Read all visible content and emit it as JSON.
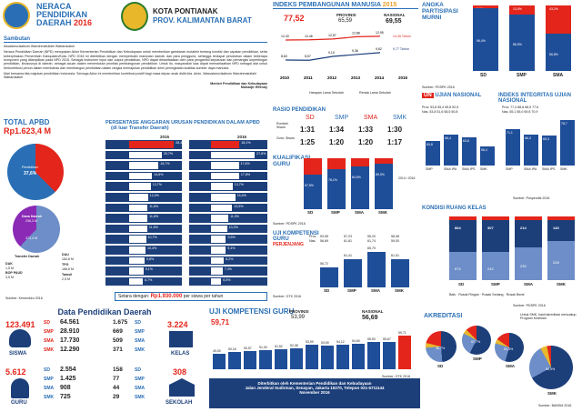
{
  "header": {
    "title1": "NERACA",
    "title2": "PENDIDIKAN",
    "title3": "DAERAH",
    "year": "2016",
    "city1": "KOTA PONTIANAK",
    "city2": "PROV. KALIMANTAN BARAT"
  },
  "sambutan": {
    "title": "Sambutan",
    "greeting": "Assalamu'alaikum Warrahmatullahi Wabarokatuh",
    "p1": "Neraca Pendidikan Daerah (NPD) merupakan Aktor Kementerian Pendidikan dan Kebudayaan untuk memberikan gambaran mutakhir tentang kondisi dan capaian pendidikan, serta keberpihakan Pemerintah Kabupaten/Kota. NPD 2016 ini diterbitkan dengan memperbaiki manusian daerah dan para pengguna, sehingga terdapat perubahan dalam beberapa komponen yang ditampilkan pada NPD 2015. Sebagai instrumen input dan output pendidikan, NPD dapat dimanfaatkan oleh para pengambil keputusan dan pemangku kepentingan pendidikan, khususnya di daerah, sebagai acuan dalam menentukan prioritas pembangunan pendidikan. Untuk itu, masyarakat luas dapat memanfaatkan NPD sebagai alat untuk berkontribusi penuh dalam membahas dan membangun pendidikan dalam rangka memajukan pendidikan demi peningkatan kualitas sumber daya manusia.",
    "p2": "Mari bersama kita majukan pendidikan Indonesia. Semoga Aktor ini memberikan kontribusi positif bagi masa depan anak didik kita. Amin. Wassalamu'alaikum Warrahmatullahi Wabarokatuh",
    "sign1": "Menteri Pendidikan dan Kebudayaan",
    "sign2": "Muhadjir Effendy"
  },
  "ipm": {
    "title": "INDEKS PEMBANGUNAN MANUSIA",
    "year": "2015",
    "val": "77,52",
    "prov_l": "PROVINSI",
    "prov_v": "65,59",
    "nas_l": "NASIONAL",
    "nas_v": "69,55",
    "top": [
      "12,43",
      "12,46",
      "12,57",
      "12,88",
      "12,95"
    ],
    "bot": [
      "8,60",
      "8,57",
      "9,10",
      "9,36",
      "9,62"
    ],
    "years": [
      "2010",
      "2011",
      "2012",
      "2013",
      "2014",
      "2015"
    ],
    "leg1": "Harapan Lama Sekolah",
    "leg2": "Rerata Lama Sekolah",
    "note1": "14,45 Tahun",
    "note2": "9,77 Tahun",
    "src": "Sumber: BPS 2016"
  },
  "apm": {
    "title": "ANGKA PARTISIPASI MURNI",
    "cats": [
      "SD",
      "SMP",
      "SMA"
    ],
    "vals": [
      "96,4%",
      "86,5%",
      "56,8%"
    ],
    "tops": [
      "3,6%",
      "13,5%",
      "43,2%"
    ],
    "src": "Sumber: PDSPK 2016"
  },
  "apbd": {
    "title": "TOTAL APBD",
    "val": "Rp1.623,4 M",
    "donut1_l": "Pendidikan",
    "donut1_v": "37,6%",
    "dana_l": "Dana Daerah",
    "dana_v": "236,3 M",
    "tr_l": "Transfer Daerah",
    "tr_v": "373,4 M",
    "dak_l": "DAK",
    "dak_v": "1,5 M",
    "bop_l": "BOP PAUD",
    "bop_v": "3,5 M",
    "dau_l": "DAU",
    "dau_v": "184,8 M",
    "tpg_l": "TPG",
    "tpg_v": "166,6 M",
    "tamsil_l": "Tamsil",
    "tamsil_v": "2,5 M",
    "src": "Sumber: Kemenkeu 2016"
  },
  "alloc": {
    "title": "PERSENTASE ANGGARAN URUSAN PENDIDIKAN DALAM APBD",
    "sub": "(di luar Transfer Daerah)",
    "y2015": "2015",
    "y2016": "2016",
    "v15": [
      "28,4%",
      "20,7%",
      "18,7%",
      "14,6%",
      "13,7%",
      "12,0%",
      "11,6%",
      "11,6%",
      "11,5%",
      "10,7%",
      "10,4%",
      "9,8%",
      "9,1%",
      "8,7%"
    ],
    "v16": [
      "18,1%",
      "27,8%",
      "17,6%",
      "17,8%",
      "13,7%",
      "15,4%",
      "13,5%",
      "11,0%",
      "10,2%",
      "9,5%",
      "9,4%",
      "8,2%",
      "7,4%",
      "6,5%"
    ],
    "setara_l": "Setara dengan:",
    "setara_v": "Rp1.930.000",
    "setara_u": "per siswa per tahun"
  },
  "rasio": {
    "title": "RASIO PENDIDIKAN",
    "cats": [
      "SD",
      "SMP",
      "SMA",
      "SMK"
    ],
    "rs_l": "Rombel: Siswa",
    "gs_l": "Guru: Siswa",
    "rs": [
      "1:31",
      "1:34",
      "1:33",
      "1:30"
    ],
    "gs": [
      "1:25",
      "1:20",
      "1:20",
      "1:17"
    ]
  },
  "kual": {
    "title": "KUALIFIKASI GURU",
    "cats": [
      "SD",
      "SMP",
      "SMA",
      "SMK"
    ],
    "v": [
      "67,5%",
      "78,1%",
      "84,6%",
      "89,0%"
    ],
    "t": [
      "26,5%",
      "17,5%",
      "13,6%",
      "9,8%"
    ],
    "leg1": "2014",
    "leg2": "2016",
    "src": "Sumber: PDSPK 2016"
  },
  "ukg": {
    "title": "UJI KOMPETENSI GURU",
    "sub": "PERJENJANG",
    "prov": [
      "53,55",
      "57,23",
      "55,20",
      "58,08"
    ],
    "nas": [
      "56,69",
      "61,81",
      "61,74",
      "59,00"
    ],
    "prov_l": "Prov.",
    "nas_l": "Nas.",
    "vals": [
      "56,72",
      "61,41",
      "65,70",
      "61,51"
    ],
    "cats": [
      "SD",
      "SMP",
      "SMA",
      "SMK"
    ],
    "src": "Sumber: GTK 2016"
  },
  "un": {
    "title": "UJIAN NASIONAL",
    "prov": [
      "53,8",
      "55,4",
      "55,8",
      "52,5"
    ],
    "nas": [
      "53,8",
      "51,6",
      "58,5",
      "50,8"
    ],
    "vals": [
      "60,8",
      "66,4",
      "63,8",
      "56,4"
    ],
    "cats": [
      "SMP",
      "SMA IPA",
      "SMA IPS",
      "SMK"
    ],
    "leg1": "2015",
    "leg2": "2016"
  },
  "iiun": {
    "title": "INDEKS INTEGRITAS UJIAN NASIONAL",
    "prov": [
      "77,4",
      "88,8",
      "68,5",
      "77,6"
    ],
    "nas": [
      "65,1",
      "65,0",
      "69,8",
      "70,9"
    ],
    "vals": [
      "71,1",
      "66,3",
      "65,3",
      "78,7"
    ],
    "src": "Sumber: Puspendik 2016"
  },
  "ruang": {
    "title": "KONDISI RUANG KELAS",
    "cats": [
      "SD",
      "SMP",
      "SMA",
      "SMK"
    ],
    "baik": [
      "674",
      "242",
      "230",
      "228"
    ],
    "rr": [
      "864",
      "307",
      "214",
      "140"
    ],
    "leg1": "Baik",
    "leg2": "Rusak Ringan",
    "leg3": "Rusak Sedang",
    "leg4": "Rusak Berat",
    "src": "Sumber: PDSPK 2016"
  },
  "dpd": {
    "title": "Data Pendidikan Daerah",
    "siswa_total": "123.491",
    "siswa_l": "SISWA",
    "sd": "64.561",
    "smp": "28.910",
    "sma": "17.730",
    "smk": "12.290",
    "sek_sd": "1.675",
    "sek_smp": "669",
    "sek_sma": "509",
    "sek_smk": "371",
    "kelas_total": "3.224",
    "kelas_l": "KELAS",
    "guru_total": "5.612",
    "guru_l": "GURU",
    "g_sd": "2.554",
    "g_smp": "1.425",
    "g_sma": "908",
    "g_smk": "725",
    "sk_sd": "158",
    "sk_smp": "77",
    "sk_sma": "44",
    "sk_smk": "29",
    "sekolah_total": "308",
    "sekolah_l": "SEKOLAH",
    "lab": [
      "SD",
      "SMP",
      "SMA",
      "SMK"
    ]
  },
  "ukg2": {
    "title": "UJI KOMPETENSI GURU",
    "val": "59,71",
    "prov_l": "PROVINSI",
    "prov_v": "53,99",
    "nas_l": "NASIONAL",
    "nas_v": "56,69",
    "vals": [
      "49,00",
      "50,16",
      "50,57",
      "51,00",
      "51,52",
      "52,08",
      "53,99",
      "53,59",
      "54,12",
      "54,60",
      "55,53",
      "55,67",
      "59,71"
    ],
    "src": "Sumber: GTK 2016",
    "f1": "Diterbitkan oleh Kementerian Pendidikan dan Kebudayaan",
    "f2": "Jalan Jenderal Sudirman, Senayan, Jakarta 10270, Telepon 021-5711144",
    "f3": "November 2016"
  },
  "akr": {
    "title": "AKREDITASI",
    "note": "Untuk SMK, hasil akreditasi mencakup Program Keahlian",
    "cats": [
      "SD",
      "SMP",
      "SMA",
      "SMK"
    ],
    "a": [
      "48,7%",
      "57,7%",
      "54,5%",
      "66,9%"
    ],
    "src": "Sumber: BANSM 2016"
  },
  "colors": {
    "blue": "#2a6fb5",
    "red": "#e3251b",
    "navy": "#1c3f7a",
    "dblue": "#1f4e99"
  }
}
